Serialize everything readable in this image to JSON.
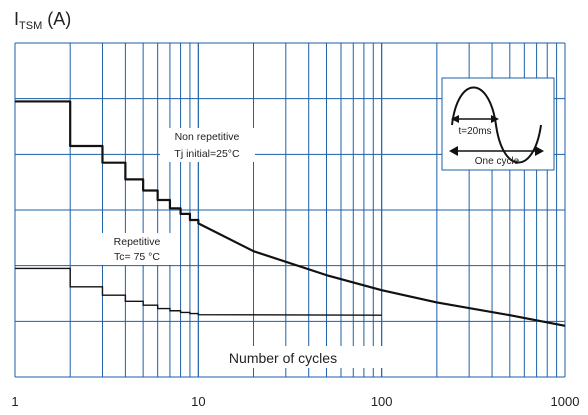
{
  "chart_data": {
    "type": "line",
    "title_main": "I",
    "title_sub": "TSM",
    "title_unit": " (A)",
    "xlabel": "Number of cycles",
    "xscale": "log",
    "xlim": [
      1,
      1000
    ],
    "x_ticks": [
      {
        "value": 1,
        "label": "1"
      },
      {
        "value": 10,
        "label": "10"
      },
      {
        "value": 100,
        "label": "100"
      },
      {
        "value": 1000,
        "label": "1000"
      }
    ],
    "ylim": [
      0,
      60
    ],
    "y_tick_values": [
      0,
      10,
      20,
      30,
      40,
      50,
      60
    ],
    "grid": true,
    "series": [
      {
        "id": "non-repetitive",
        "label_lines": [
          "Non repetitive",
          "Tj initial=25°C"
        ],
        "style": "step-then-smooth",
        "steps": [
          {
            "n": 1,
            "v": 49.5
          },
          {
            "n": 2,
            "v": 41.5
          },
          {
            "n": 3,
            "v": 38.5
          },
          {
            "n": 4,
            "v": 35.5
          },
          {
            "n": 5,
            "v": 33.5
          },
          {
            "n": 6,
            "v": 31.8
          },
          {
            "n": 7,
            "v": 30.3
          },
          {
            "n": 8,
            "v": 29.3
          },
          {
            "n": 9,
            "v": 28.2
          }
        ],
        "curve": [
          {
            "n": 10,
            "v": 27.6
          },
          {
            "n": 20,
            "v": 22.6
          },
          {
            "n": 50,
            "v": 18.3
          },
          {
            "n": 100,
            "v": 15.6
          },
          {
            "n": 200,
            "v": 13.4
          },
          {
            "n": 500,
            "v": 11.1
          },
          {
            "n": 1000,
            "v": 9.2
          }
        ]
      },
      {
        "id": "repetitive",
        "label_lines": [
          "Repetitive",
          "Tc= 75 °C"
        ],
        "style": "step-then-flat",
        "steps": [
          {
            "n": 1,
            "v": 19.5
          },
          {
            "n": 2,
            "v": 16.2
          },
          {
            "n": 3,
            "v": 14.7
          },
          {
            "n": 4,
            "v": 13.6
          },
          {
            "n": 5,
            "v": 12.9
          },
          {
            "n": 6,
            "v": 12.3
          },
          {
            "n": 7,
            "v": 11.9
          },
          {
            "n": 8,
            "v": 11.6
          },
          {
            "n": 9,
            "v": 11.4
          },
          {
            "n": 10,
            "v": 11.2
          }
        ],
        "flat_end": {
          "n": 100,
          "v": 11.1
        }
      }
    ],
    "inset": {
      "label_period": "t=20ms",
      "label_cycle": "One cycle"
    }
  }
}
